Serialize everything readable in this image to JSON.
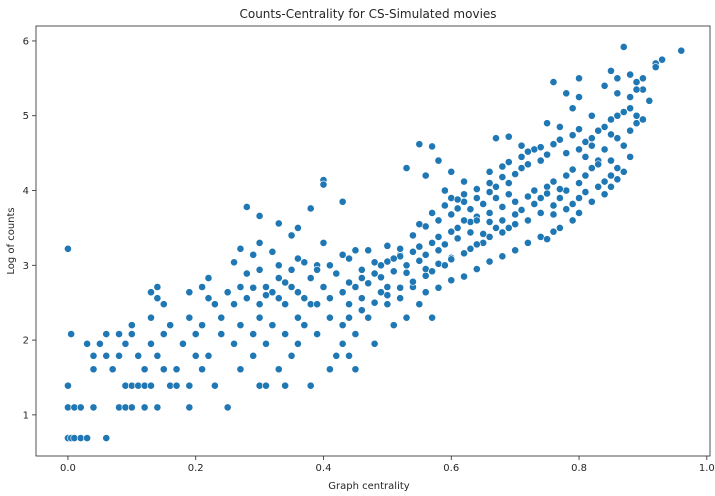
{
  "chart_data": {
    "type": "scatter",
    "title": "Counts-Centrality for CS-Simulated movies",
    "xlabel": "Graph centrality",
    "ylabel": "Log of counts",
    "xlim": [
      -0.05,
      1.005
    ],
    "ylim": [
      0.45,
      6.2
    ],
    "xticks": [
      0.0,
      0.2,
      0.4,
      0.6,
      0.8,
      1.0
    ],
    "xtick_labels": [
      "0.0",
      "0.2",
      "0.4",
      "0.6",
      "0.8",
      "1.0"
    ],
    "yticks": [
      1,
      2,
      3,
      4,
      5,
      6
    ],
    "ytick_labels": [
      "1",
      "2",
      "3",
      "4",
      "5",
      "6"
    ],
    "grid": false,
    "legend": "none",
    "marker_color": "#1f77b4",
    "marker_edge": "#ffffff",
    "points": [
      [
        0.0,
        0.69
      ],
      [
        0.005,
        0.69
      ],
      [
        0.01,
        0.69
      ],
      [
        0.02,
        0.69
      ],
      [
        0.03,
        0.69
      ],
      [
        0.06,
        0.69
      ],
      [
        0.0,
        1.1
      ],
      [
        0.01,
        1.1
      ],
      [
        0.02,
        1.1
      ],
      [
        0.04,
        1.1
      ],
      [
        0.08,
        1.1
      ],
      [
        0.09,
        1.1
      ],
      [
        0.1,
        1.1
      ],
      [
        0.12,
        1.1
      ],
      [
        0.14,
        1.1
      ],
      [
        0.19,
        1.1
      ],
      [
        0.25,
        1.1
      ],
      [
        0.0,
        1.39
      ],
      [
        0.09,
        1.39
      ],
      [
        0.1,
        1.39
      ],
      [
        0.11,
        1.39
      ],
      [
        0.12,
        1.39
      ],
      [
        0.13,
        1.39
      ],
      [
        0.16,
        1.39
      ],
      [
        0.17,
        1.39
      ],
      [
        0.19,
        1.39
      ],
      [
        0.23,
        1.39
      ],
      [
        0.3,
        1.39
      ],
      [
        0.31,
        1.39
      ],
      [
        0.34,
        1.39
      ],
      [
        0.38,
        1.39
      ],
      [
        0.0,
        3.22
      ],
      [
        0.005,
        2.08
      ],
      [
        0.04,
        1.61
      ],
      [
        0.07,
        1.61
      ],
      [
        0.12,
        1.61
      ],
      [
        0.15,
        1.61
      ],
      [
        0.17,
        1.61
      ],
      [
        0.21,
        1.61
      ],
      [
        0.27,
        1.61
      ],
      [
        0.33,
        1.61
      ],
      [
        0.41,
        1.61
      ],
      [
        0.45,
        1.61
      ],
      [
        0.04,
        1.79
      ],
      [
        0.06,
        1.79
      ],
      [
        0.08,
        1.79
      ],
      [
        0.11,
        1.79
      ],
      [
        0.14,
        1.79
      ],
      [
        0.2,
        1.79
      ],
      [
        0.22,
        1.79
      ],
      [
        0.29,
        1.79
      ],
      [
        0.35,
        1.79
      ],
      [
        0.42,
        1.79
      ],
      [
        0.44,
        1.79
      ],
      [
        0.03,
        1.95
      ],
      [
        0.05,
        1.95
      ],
      [
        0.09,
        1.95
      ],
      [
        0.13,
        1.95
      ],
      [
        0.18,
        1.95
      ],
      [
        0.26,
        1.95
      ],
      [
        0.31,
        1.95
      ],
      [
        0.36,
        1.95
      ],
      [
        0.43,
        1.95
      ],
      [
        0.48,
        1.95
      ],
      [
        0.06,
        2.08
      ],
      [
        0.08,
        2.08
      ],
      [
        0.1,
        2.08
      ],
      [
        0.15,
        2.08
      ],
      [
        0.2,
        2.08
      ],
      [
        0.24,
        2.08
      ],
      [
        0.29,
        2.08
      ],
      [
        0.34,
        2.08
      ],
      [
        0.39,
        2.08
      ],
      [
        0.45,
        2.08
      ],
      [
        0.1,
        2.2
      ],
      [
        0.16,
        2.2
      ],
      [
        0.21,
        2.2
      ],
      [
        0.27,
        2.2
      ],
      [
        0.32,
        2.2
      ],
      [
        0.37,
        2.2
      ],
      [
        0.43,
        2.2
      ],
      [
        0.51,
        2.2
      ],
      [
        0.13,
        2.3
      ],
      [
        0.19,
        2.3
      ],
      [
        0.24,
        2.3
      ],
      [
        0.3,
        2.3
      ],
      [
        0.36,
        2.3
      ],
      [
        0.41,
        2.3
      ],
      [
        0.47,
        2.3
      ],
      [
        0.53,
        2.3
      ],
      [
        0.57,
        2.3
      ],
      [
        0.15,
        2.48
      ],
      [
        0.23,
        2.48
      ],
      [
        0.3,
        2.48
      ],
      [
        0.34,
        2.48
      ],
      [
        0.38,
        2.48
      ],
      [
        0.44,
        2.48
      ],
      [
        0.5,
        2.48
      ],
      [
        0.55,
        2.48
      ],
      [
        0.14,
        2.56
      ],
      [
        0.22,
        2.56
      ],
      [
        0.28,
        2.56
      ],
      [
        0.33,
        2.56
      ],
      [
        0.37,
        2.56
      ],
      [
        0.41,
        2.56
      ],
      [
        0.46,
        2.56
      ],
      [
        0.52,
        2.56
      ],
      [
        0.13,
        2.64
      ],
      [
        0.19,
        2.64
      ],
      [
        0.25,
        2.64
      ],
      [
        0.32,
        2.64
      ],
      [
        0.36,
        2.64
      ],
      [
        0.43,
        2.64
      ],
      [
        0.49,
        2.64
      ],
      [
        0.56,
        2.64
      ],
      [
        0.14,
        2.71
      ],
      [
        0.21,
        2.71
      ],
      [
        0.27,
        2.71
      ],
      [
        0.31,
        2.71
      ],
      [
        0.35,
        2.71
      ],
      [
        0.4,
        2.71
      ],
      [
        0.45,
        2.71
      ],
      [
        0.5,
        2.71
      ],
      [
        0.54,
        2.71
      ],
      [
        0.22,
        2.83
      ],
      [
        0.28,
        2.89
      ],
      [
        0.3,
        2.94
      ],
      [
        0.33,
        3.0
      ],
      [
        0.26,
        3.04
      ],
      [
        0.36,
        3.09
      ],
      [
        0.29,
        3.14
      ],
      [
        0.32,
        3.18
      ],
      [
        0.27,
        3.22
      ],
      [
        0.3,
        3.3
      ],
      [
        0.34,
        2.77
      ],
      [
        0.38,
        2.83
      ],
      [
        0.42,
        2.89
      ],
      [
        0.46,
        2.94
      ],
      [
        0.39,
        3.0
      ],
      [
        0.48,
        3.04
      ],
      [
        0.44,
        3.09
      ],
      [
        0.52,
        3.14
      ],
      [
        0.47,
        3.2
      ],
      [
        0.5,
        3.26
      ],
      [
        0.28,
        3.78
      ],
      [
        0.3,
        3.66
      ],
      [
        0.33,
        3.56
      ],
      [
        0.38,
        3.76
      ],
      [
        0.4,
        4.14
      ],
      [
        0.4,
        4.08
      ],
      [
        0.43,
        3.85
      ],
      [
        0.35,
        3.4
      ],
      [
        0.4,
        3.3
      ],
      [
        0.36,
        3.5
      ],
      [
        0.55,
        4.62
      ],
      [
        0.57,
        4.59
      ],
      [
        0.53,
        4.3
      ],
      [
        0.58,
        4.4
      ],
      [
        0.6,
        4.25
      ],
      [
        0.56,
        4.2
      ],
      [
        0.62,
        4.12
      ],
      [
        0.59,
        4.0
      ],
      [
        0.5,
        3.05
      ],
      [
        0.52,
        3.12
      ],
      [
        0.54,
        3.18
      ],
      [
        0.55,
        3.25
      ],
      [
        0.57,
        3.3
      ],
      [
        0.58,
        3.38
      ],
      [
        0.6,
        3.45
      ],
      [
        0.61,
        3.5
      ],
      [
        0.63,
        3.58
      ],
      [
        0.64,
        3.65
      ],
      [
        0.53,
        2.9
      ],
      [
        0.56,
        2.95
      ],
      [
        0.58,
        3.02
      ],
      [
        0.6,
        3.1
      ],
      [
        0.62,
        3.16
      ],
      [
        0.63,
        3.22
      ],
      [
        0.65,
        3.3
      ],
      [
        0.66,
        3.38
      ],
      [
        0.68,
        3.44
      ],
      [
        0.69,
        3.5
      ],
      [
        0.54,
        3.4
      ],
      [
        0.56,
        3.52
      ],
      [
        0.58,
        3.6
      ],
      [
        0.6,
        3.68
      ],
      [
        0.61,
        3.76
      ],
      [
        0.62,
        3.85
      ],
      [
        0.64,
        3.9
      ],
      [
        0.66,
        3.98
      ],
      [
        0.67,
        4.05
      ],
      [
        0.69,
        4.1
      ],
      [
        0.58,
        2.7
      ],
      [
        0.6,
        2.8
      ],
      [
        0.62,
        2.85
      ],
      [
        0.64,
        2.95
      ],
      [
        0.66,
        3.05
      ],
      [
        0.68,
        3.12
      ],
      [
        0.7,
        3.2
      ],
      [
        0.72,
        3.3
      ],
      [
        0.74,
        3.38
      ],
      [
        0.76,
        3.45
      ],
      [
        0.6,
        3.9
      ],
      [
        0.62,
        3.95
      ],
      [
        0.64,
        4.02
      ],
      [
        0.66,
        4.1
      ],
      [
        0.68,
        4.18
      ],
      [
        0.7,
        4.22
      ],
      [
        0.71,
        4.3
      ],
      [
        0.72,
        4.35
      ],
      [
        0.74,
        4.4
      ],
      [
        0.75,
        4.48
      ],
      [
        0.64,
        3.6
      ],
      [
        0.66,
        3.7
      ],
      [
        0.68,
        3.78
      ],
      [
        0.7,
        3.85
      ],
      [
        0.72,
        3.92
      ],
      [
        0.73,
        4.0
      ],
      [
        0.75,
        4.05
      ],
      [
        0.76,
        4.12
      ],
      [
        0.78,
        4.2
      ],
      [
        0.79,
        4.28
      ],
      [
        0.67,
        4.7
      ],
      [
        0.69,
        4.72
      ],
      [
        0.71,
        4.6
      ],
      [
        0.73,
        4.55
      ],
      [
        0.75,
        4.9
      ],
      [
        0.77,
        4.85
      ],
      [
        0.79,
        5.1
      ],
      [
        0.78,
        5.3
      ],
      [
        0.8,
        5.25
      ],
      [
        0.82,
        5.0
      ],
      [
        0.7,
        3.55
      ],
      [
        0.72,
        3.6
      ],
      [
        0.74,
        3.7
      ],
      [
        0.76,
        3.8
      ],
      [
        0.77,
        3.9
      ],
      [
        0.78,
        4.0
      ],
      [
        0.8,
        4.1
      ],
      [
        0.81,
        4.2
      ],
      [
        0.82,
        4.3
      ],
      [
        0.83,
        4.4
      ],
      [
        0.72,
        3.3
      ],
      [
        0.75,
        3.35
      ],
      [
        0.77,
        3.5
      ],
      [
        0.79,
        3.6
      ],
      [
        0.8,
        3.7
      ],
      [
        0.82,
        3.85
      ],
      [
        0.84,
        3.95
      ],
      [
        0.85,
        4.05
      ],
      [
        0.86,
        4.15
      ],
      [
        0.87,
        4.25
      ],
      [
        0.78,
        4.5
      ],
      [
        0.8,
        4.55
      ],
      [
        0.81,
        4.65
      ],
      [
        0.82,
        4.7
      ],
      [
        0.83,
        4.8
      ],
      [
        0.84,
        4.85
      ],
      [
        0.85,
        4.95
      ],
      [
        0.86,
        5.0
      ],
      [
        0.87,
        5.05
      ],
      [
        0.88,
        5.1
      ],
      [
        0.76,
        5.45
      ],
      [
        0.8,
        5.5
      ],
      [
        0.84,
        5.4
      ],
      [
        0.85,
        5.6
      ],
      [
        0.86,
        5.5
      ],
      [
        0.87,
        5.92
      ],
      [
        0.88,
        5.55
      ],
      [
        0.89,
        5.45
      ],
      [
        0.9,
        5.35
      ],
      [
        0.91,
        5.2
      ],
      [
        0.86,
        5.3
      ],
      [
        0.88,
        5.25
      ],
      [
        0.89,
        5.0
      ],
      [
        0.9,
        4.95
      ],
      [
        0.92,
        5.7
      ],
      [
        0.93,
        5.75
      ],
      [
        0.92,
        5.65
      ],
      [
        0.96,
        5.87
      ],
      [
        0.9,
        5.5
      ],
      [
        0.89,
        5.35
      ],
      [
        0.44,
        2.3
      ],
      [
        0.46,
        2.4
      ],
      [
        0.48,
        2.5
      ],
      [
        0.5,
        2.6
      ],
      [
        0.52,
        2.7
      ],
      [
        0.54,
        2.78
      ],
      [
        0.56,
        2.86
      ],
      [
        0.57,
        2.92
      ],
      [
        0.59,
        3.0
      ],
      [
        0.6,
        3.08
      ],
      [
        0.47,
        2.76
      ],
      [
        0.49,
        2.84
      ],
      [
        0.51,
        2.92
      ],
      [
        0.53,
        3.0
      ],
      [
        0.55,
        3.06
      ],
      [
        0.56,
        3.14
      ],
      [
        0.58,
        3.2
      ],
      [
        0.59,
        3.28
      ],
      [
        0.61,
        3.36
      ],
      [
        0.63,
        3.44
      ],
      [
        0.64,
        3.28
      ],
      [
        0.65,
        3.42
      ],
      [
        0.67,
        3.5
      ],
      [
        0.68,
        3.6
      ],
      [
        0.7,
        3.68
      ],
      [
        0.71,
        3.74
      ],
      [
        0.73,
        3.82
      ],
      [
        0.74,
        3.9
      ],
      [
        0.75,
        3.96
      ],
      [
        0.77,
        4.02
      ],
      [
        0.66,
        4.25
      ],
      [
        0.68,
        4.32
      ],
      [
        0.69,
        4.38
      ],
      [
        0.71,
        4.45
      ],
      [
        0.72,
        4.52
      ],
      [
        0.74,
        4.58
      ],
      [
        0.76,
        4.62
      ],
      [
        0.77,
        4.68
      ],
      [
        0.79,
        4.74
      ],
      [
        0.8,
        4.82
      ],
      [
        0.76,
        3.68
      ],
      [
        0.78,
        3.75
      ],
      [
        0.79,
        3.82
      ],
      [
        0.8,
        3.9
      ],
      [
        0.81,
        3.98
      ],
      [
        0.83,
        4.05
      ],
      [
        0.84,
        4.12
      ],
      [
        0.85,
        4.2
      ],
      [
        0.86,
        4.3
      ],
      [
        0.88,
        4.45
      ],
      [
        0.26,
        2.48
      ],
      [
        0.29,
        2.7
      ],
      [
        0.31,
        2.6
      ],
      [
        0.33,
        2.83
      ],
      [
        0.35,
        2.94
      ],
      [
        0.37,
        3.04
      ],
      [
        0.39,
        2.94
      ],
      [
        0.41,
        3.0
      ],
      [
        0.43,
        3.14
      ],
      [
        0.45,
        3.2
      ],
      [
        0.36,
        2.3
      ],
      [
        0.39,
        2.48
      ],
      [
        0.41,
        2.56
      ],
      [
        0.43,
        2.64
      ],
      [
        0.44,
        2.77
      ],
      [
        0.46,
        2.83
      ],
      [
        0.48,
        2.89
      ],
      [
        0.49,
        3.0
      ],
      [
        0.51,
        3.09
      ],
      [
        0.52,
        3.22
      ],
      [
        0.55,
        3.55
      ],
      [
        0.57,
        3.7
      ],
      [
        0.59,
        3.8
      ],
      [
        0.61,
        3.88
      ],
      [
        0.62,
        3.6
      ],
      [
        0.63,
        3.75
      ],
      [
        0.65,
        3.82
      ],
      [
        0.66,
        3.58
      ],
      [
        0.67,
        3.9
      ],
      [
        0.69,
        3.95
      ],
      [
        0.82,
        4.6
      ],
      [
        0.83,
        4.35
      ],
      [
        0.84,
        4.55
      ],
      [
        0.85,
        4.4
      ],
      [
        0.86,
        4.7
      ],
      [
        0.87,
        4.6
      ],
      [
        0.88,
        4.8
      ],
      [
        0.89,
        4.9
      ],
      [
        0.85,
        4.75
      ],
      [
        0.81,
        4.45
      ]
    ]
  }
}
